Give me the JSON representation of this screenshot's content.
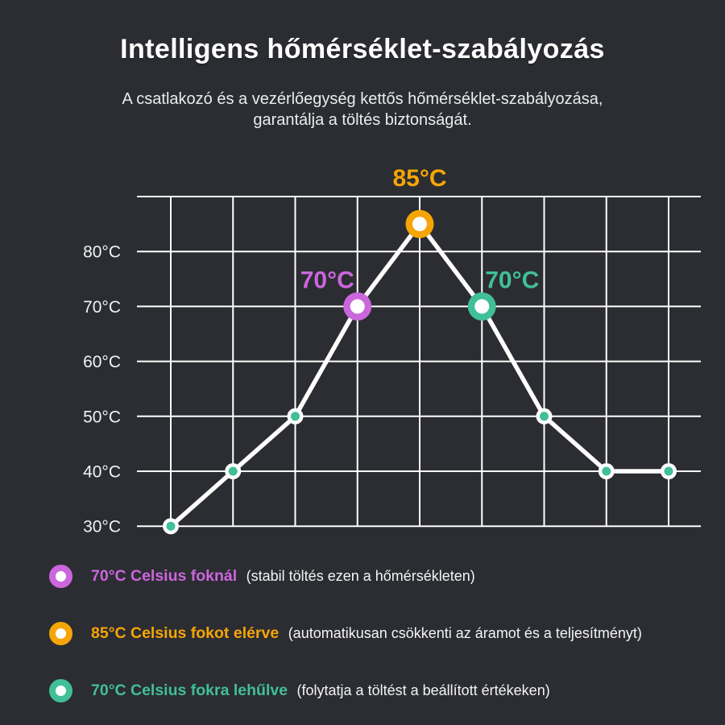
{
  "page": {
    "title": "Intelligens hőmérséklet-szabályozás",
    "subtitle_line1": "A csatlakozó és a vezérlőegység kettős hőmérséklet-szabályozása,",
    "subtitle_line2": "garantálja a töltés biztonságát."
  },
  "colors": {
    "background": "#2b2d32",
    "grid": "#ffffff",
    "line": "#ffffff",
    "magenta": "#cb67dc",
    "orange": "#f5a506",
    "teal": "#41bf97"
  },
  "chart_data": {
    "type": "line",
    "title": "",
    "xlabel": "",
    "ylabel": "",
    "x": [
      1,
      2,
      3,
      4,
      5,
      6,
      7,
      8,
      9
    ],
    "values": [
      30,
      40,
      50,
      70,
      85,
      70,
      50,
      40,
      40
    ],
    "ylim": [
      30,
      90
    ],
    "ytick_step": 10,
    "yticks": [
      30,
      40,
      50,
      60,
      70,
      80
    ],
    "ytick_labels": [
      "30°C",
      "40°C",
      "50°C",
      "60°C",
      "70°C",
      "80°C"
    ],
    "grid": true,
    "legend_position": "below",
    "line_color": "#ffffff",
    "marker_default_color": "#41bf97",
    "highlight_points": [
      {
        "index": 3,
        "value": 70,
        "label": "70°C",
        "color": "#cb67dc",
        "label_position": "left-above"
      },
      {
        "index": 4,
        "value": 85,
        "label": "85°C",
        "color": "#f5a506",
        "label_position": "above"
      },
      {
        "index": 5,
        "value": 70,
        "label": "70°C",
        "color": "#41bf97",
        "label_position": "right-above"
      }
    ]
  },
  "legend": {
    "items": [
      {
        "label": "70°C Celsius foknál",
        "description": "(stabil töltés ezen a hőmérsékleten)",
        "color": "#cb67dc"
      },
      {
        "label": "85°C Celsius fokot elérve",
        "description": "(automatikusan csökkenti az áramot és a teljesítményt)",
        "color": "#f5a506"
      },
      {
        "label": "70°C Celsius fokra lehűlve",
        "description": "(folytatja a töltést a beállított értékeken)",
        "color": "#41bf97"
      }
    ]
  }
}
